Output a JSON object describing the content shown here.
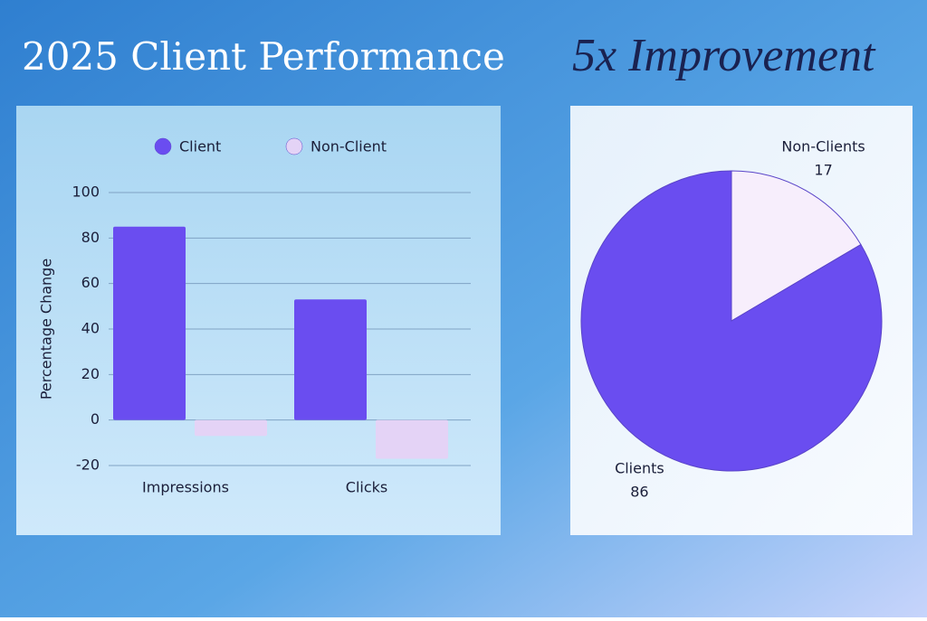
{
  "title": "2025 Client Performance",
  "tagline": "5x Improvement",
  "chart_data": [
    {
      "type": "bar",
      "categories": [
        "Impressions",
        "Clicks"
      ],
      "series": [
        {
          "name": "Client",
          "color": "#6a4df0",
          "values": [
            85,
            53
          ]
        },
        {
          "name": "Non-Client",
          "color": "#e4d3f6",
          "values": [
            -7,
            -17
          ]
        }
      ],
      "y_label": "Percentage Change",
      "ylim": [
        -20,
        100
      ],
      "yticks": [
        -20,
        0,
        20,
        40,
        60,
        80,
        100
      ],
      "grid": true,
      "legend": "top"
    },
    {
      "type": "pie",
      "categories": [
        "Non-Clients",
        "Clients"
      ],
      "values": [
        17,
        86
      ],
      "colors": [
        "#f7eefc",
        "#6a4df0"
      ]
    }
  ]
}
